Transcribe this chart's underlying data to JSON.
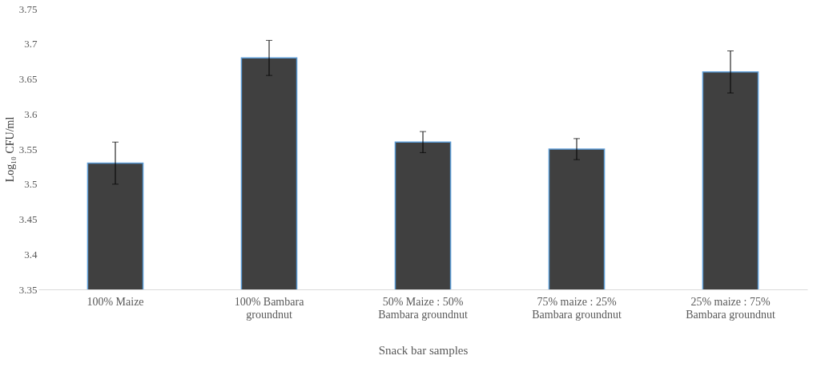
{
  "chart_data": {
    "type": "bar",
    "xlabel": "Snack bar samples",
    "ylabel": "Log₁₀ CFU/ml",
    "categories": [
      "100% Maize",
      "100% Bambara groundnut",
      "50% Maize : 50% Bambara groundnut",
      "75% maize : 25% Bambara groundnut",
      "25% maize : 75% Bambara groundnut"
    ],
    "values": [
      3.53,
      3.68,
      3.56,
      3.55,
      3.66
    ],
    "errors": [
      0.03,
      0.025,
      0.015,
      0.015,
      0.03
    ],
    "color": "#404040",
    "ylim": [
      3.35,
      3.75
    ],
    "yticks": [
      3.35,
      3.4,
      3.45,
      3.5,
      3.55,
      3.6,
      3.65,
      3.7,
      3.75
    ],
    "grid": false
  }
}
